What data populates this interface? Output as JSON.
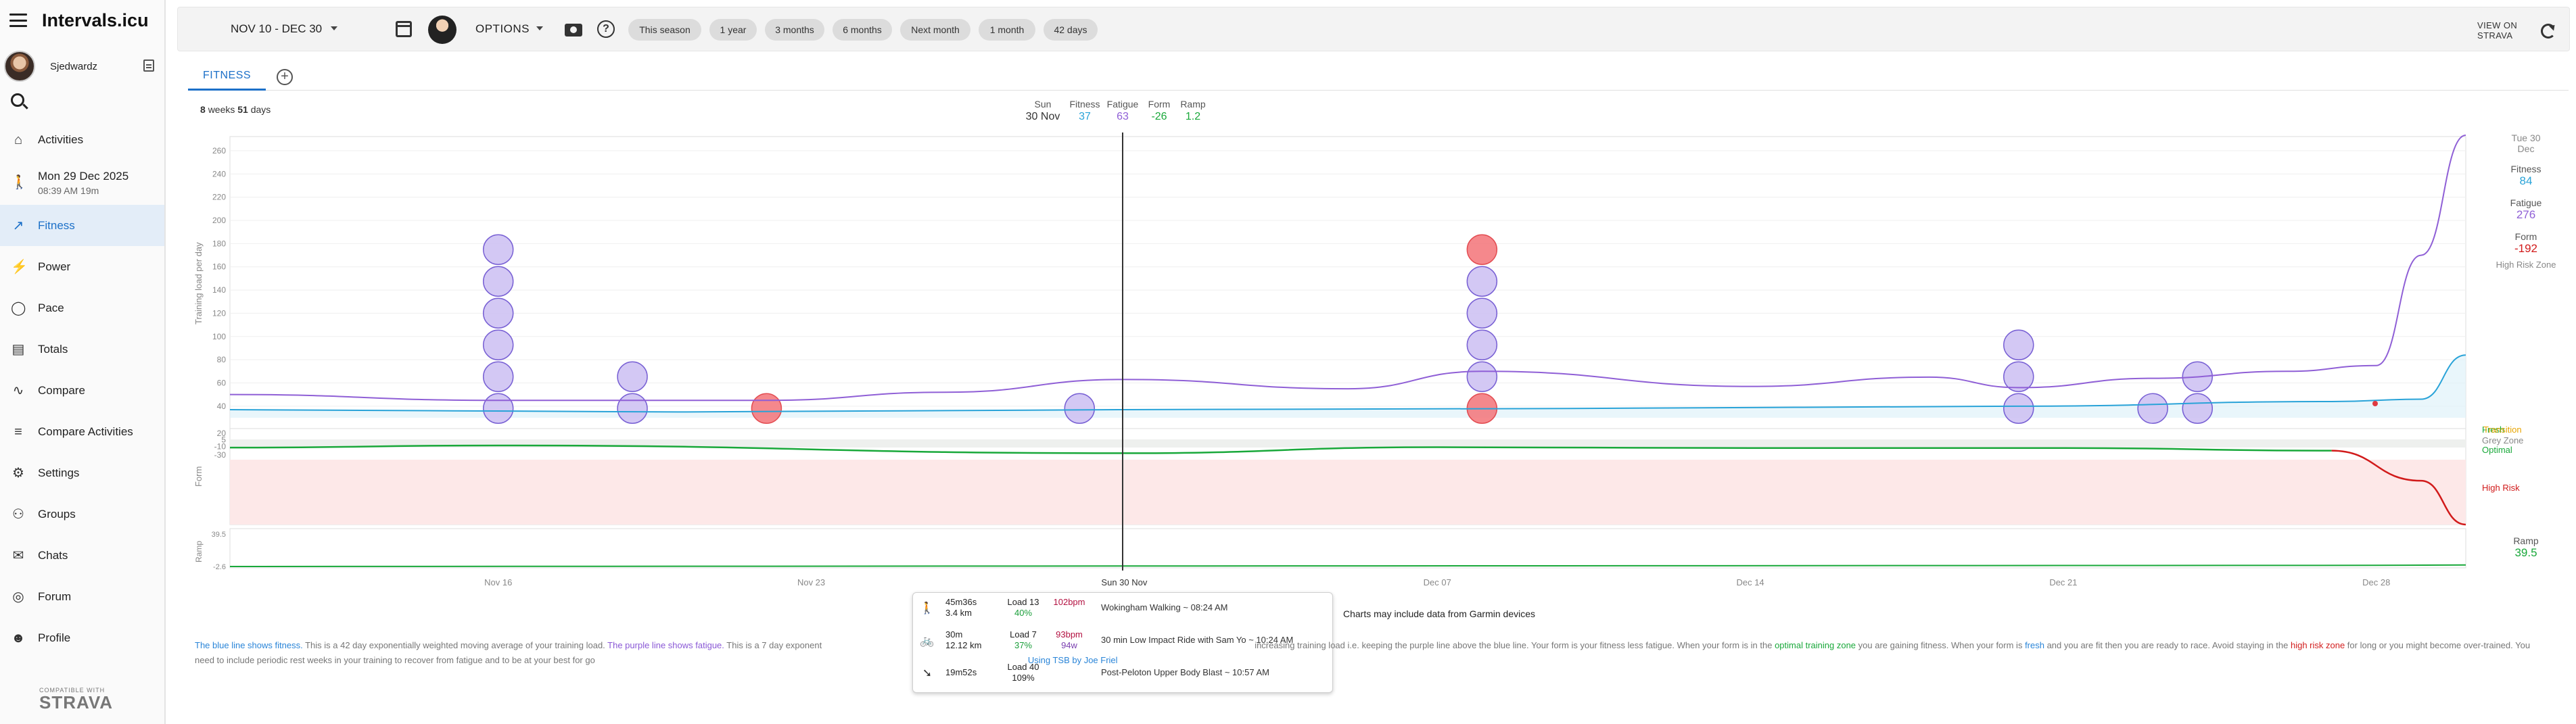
{
  "app": {
    "title": "Intervals.icu"
  },
  "user": {
    "name": "Sjedwardz"
  },
  "sidebar": {
    "items": [
      {
        "label": "Activities",
        "icon": "home-icon"
      },
      {
        "label": "Mon 29 Dec 2025",
        "sub": "08:39 AM   19m",
        "icon": "walk-icon"
      },
      {
        "label": "Fitness",
        "icon": "trending-icon",
        "active": true
      },
      {
        "label": "Power",
        "icon": "power-icon"
      },
      {
        "label": "Pace",
        "icon": "watch-icon"
      },
      {
        "label": "Totals",
        "icon": "totals-icon"
      },
      {
        "label": "Compare",
        "icon": "compare-icon"
      },
      {
        "label": "Compare Activities",
        "icon": "compare-activities-icon"
      },
      {
        "label": "Settings",
        "icon": "gear-icon"
      },
      {
        "label": "Groups",
        "icon": "groups-icon"
      },
      {
        "label": "Chats",
        "icon": "chat-icon"
      },
      {
        "label": "Forum",
        "icon": "forum-icon"
      },
      {
        "label": "Profile",
        "icon": "profile-icon"
      }
    ],
    "strava_small": "COMPATIBLE WITH",
    "strava_word": "STRAVA"
  },
  "topbar": {
    "date_range": "NOV 10 - DEC 30",
    "options": "OPTIONS",
    "presets": [
      "This season",
      "1 year",
      "3 months",
      "6 months",
      "Next month",
      "1 month",
      "42 days"
    ],
    "strava_link": [
      "VIEW ON",
      "STRAVA"
    ]
  },
  "tabs": {
    "fitness": "FITNESS"
  },
  "summary": {
    "weeks": "8",
    "weeks_label": "weeks",
    "days": "51",
    "days_label": "days"
  },
  "hover": {
    "day": "Sun",
    "date": "30 Nov",
    "fitness_label": "Fitness",
    "fitness": "37",
    "fatigue_label": "Fatigue",
    "fatigue": "63",
    "form_label": "Form",
    "form": "-26",
    "ramp_label": "Ramp",
    "ramp": "1.2"
  },
  "right_stats": {
    "date": [
      "Tue 30",
      "Dec"
    ],
    "fitness_label": "Fitness",
    "fitness": "84",
    "fatigue_label": "Fatigue",
    "fatigue": "276",
    "form_label": "Form",
    "form": "-192",
    "zone": "High Risk Zone",
    "ramp_label": "Ramp",
    "ramp": "39.5"
  },
  "zones": {
    "fresh": "Fresh",
    "transition": "Transition",
    "grey": "Grey Zone",
    "optimal": "Optimal",
    "high_risk": "High Risk"
  },
  "colors": {
    "fitness": "#29a3d8",
    "fatigue": "#8f5fd6",
    "form": "#19a83a",
    "bubble": "#cfc3f3",
    "bubble_border": "#6a4fd0",
    "bubble_hot": "#f47c80",
    "bubble_hot_border": "#e03a40",
    "risk_fill": "#fde8e8"
  },
  "chart_data": {
    "type": "line",
    "x_start": "2025-11-10",
    "x_end": "2025-12-30",
    "x_ticks": [
      "Nov 16",
      "Nov 23",
      "Sun 30 Nov",
      "Dec 07",
      "Dec 14",
      "Dec 21",
      "Dec 28"
    ],
    "load_axis": {
      "label": "Training load per day",
      "ticks": [
        "260",
        "240",
        "220",
        "200",
        "180",
        "160",
        "140",
        "120",
        "100",
        "80",
        "60",
        "40"
      ]
    },
    "form_axis": {
      "label": "Form",
      "ticks": [
        "20",
        "5",
        "-10",
        "-30"
      ]
    },
    "ramp_axis": {
      "label": "Ramp",
      "ticks": [
        "39.5",
        "-2.6"
      ]
    },
    "series": [
      {
        "name": "Fitness",
        "x": [
          "2025-11-10",
          "2025-11-20",
          "2025-11-30",
          "2025-12-10",
          "2025-12-20",
          "2025-12-27",
          "2025-12-29",
          "2025-12-30"
        ],
        "values": [
          37,
          35,
          37,
          38,
          40,
          44,
          46,
          84
        ]
      },
      {
        "name": "Fatigue",
        "x": [
          "2025-11-10",
          "2025-11-16",
          "2025-11-22",
          "2025-11-26",
          "2025-11-30",
          "2025-12-05",
          "2025-12-08",
          "2025-12-14",
          "2025-12-18",
          "2025-12-20",
          "2025-12-23",
          "2025-12-26",
          "2025-12-28",
          "2025-12-29",
          "2025-12-30"
        ],
        "values": [
          50,
          45,
          45,
          52,
          63,
          55,
          70,
          57,
          65,
          56,
          64,
          70,
          75,
          170,
          276
        ]
      },
      {
        "name": "Form",
        "x": [
          "2025-11-10",
          "2025-11-16",
          "2025-11-30",
          "2025-12-07",
          "2025-12-14",
          "2025-12-21",
          "2025-12-27",
          "2025-12-29",
          "2025-12-30"
        ],
        "values": [
          -13,
          -8,
          -26,
          -12,
          -14,
          -14,
          -20,
          -90,
          -192
        ]
      }
    ],
    "bubbles": [
      {
        "date": "2025-11-16",
        "count": 6,
        "hot": false
      },
      {
        "date": "2025-11-19",
        "count": 2,
        "hot": false
      },
      {
        "date": "2025-11-22",
        "count": 1,
        "hot": true
      },
      {
        "date": "2025-11-29",
        "count": 1,
        "hot": false
      },
      {
        "date": "2025-12-08",
        "count": 6,
        "hot_top": true,
        "hot_bottom": true
      },
      {
        "date": "2025-12-20",
        "count": 3,
        "hot": false
      },
      {
        "date": "2025-12-23",
        "count": 1,
        "hot": false
      },
      {
        "date": "2025-12-24",
        "count": 2,
        "hot": false
      }
    ],
    "ramp": {
      "x": [
        "2025-11-10",
        "2025-12-30"
      ],
      "values": [
        -2.6,
        39.5
      ]
    }
  },
  "tooltip": {
    "rows": [
      {
        "icon": "walk-icon",
        "dur": "45m36s",
        "dist": "3.4 km",
        "load_label": "Load 13",
        "pct": "40%",
        "hr": "102bpm",
        "watts": "",
        "name": "Wokingham Walking ~ 08:24 AM"
      },
      {
        "icon": "bike-icon",
        "dur": "30m",
        "dist": "12.12 km",
        "load_label": "Load 7",
        "pct": "37%",
        "hr": "93bpm",
        "watts": "94w",
        "name": "30 min Low Impact Ride with Sam Yo ~ 10:24 AM"
      },
      {
        "icon": "weights-icon",
        "dur": "19m52s",
        "dist": "",
        "load_label": "Load 40",
        "pct": "109%",
        "hr": "",
        "watts": "",
        "name": "Post-Peloton Upper Body Blast ~ 10:57 AM"
      }
    ]
  },
  "garmin_note": "Charts may include data from Garmin devices",
  "explain": {
    "blue": "The blue line shows fitness.",
    "p1": " This is a 42 day exponentially weighted moving average of your training load. ",
    "purple": "The purple line shows fatigue.",
    "p2": " This is a 7 day exponent",
    "p3": "increasing training load i.e. keeping the purple line above the blue line. Your form is your fitness less fatigue. When your form is in the ",
    "optimal": "optimal training zone",
    "p4": " you are gaining fitness. When your form is ",
    "fresh": "fresh",
    "p5": " and you are fit then you are ready to race. Avoid staying in the ",
    "high": "high risk zone",
    "p6": " for long or you might become over-trained. You need to include periodic rest weeks in your training to recover from fatigue and to be at your best for go",
    "tsb": "Using TSB by Joe Friel"
  }
}
